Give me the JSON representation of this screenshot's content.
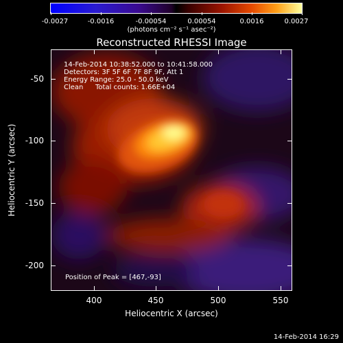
{
  "colorbar": {
    "tick_labels": [
      "-0.0027",
      "-0.0016",
      "-0.00054",
      "0.00054",
      "0.0016",
      "0.0027"
    ],
    "units": "(photons cm⁻² s⁻¹ asec⁻²)"
  },
  "title": "Reconstructed RHESSI Image",
  "annotations": {
    "time_range": "14-Feb-2014 10:38:52.000 to 10:41:58.000",
    "detectors": "Detectors: 3F 5F 6F 7F 8F 9F, Att 1",
    "energy": "Energy Range: 25.0 - 50.0 keV",
    "method": "Clean",
    "counts": "Total counts: 1.66E+04",
    "peak": "Position of Peak = [467,-93]"
  },
  "chart_data": {
    "type": "heatmap",
    "title": "Reconstructed RHESSI Image",
    "xlabel": "Heliocentric X (arcsec)",
    "ylabel": "Heliocentric Y (arcsec)",
    "xlim": [
      366,
      559
    ],
    "ylim": [
      -220,
      -27
    ],
    "x_ticks": [
      400,
      450,
      500,
      550
    ],
    "y_ticks": [
      -50,
      -100,
      -150,
      -200
    ],
    "colorbar_range": [
      -0.0027,
      0.0027
    ],
    "peak_position": [
      467,
      -93
    ]
  },
  "footer_timestamp": "14-Feb-2014 16:29"
}
